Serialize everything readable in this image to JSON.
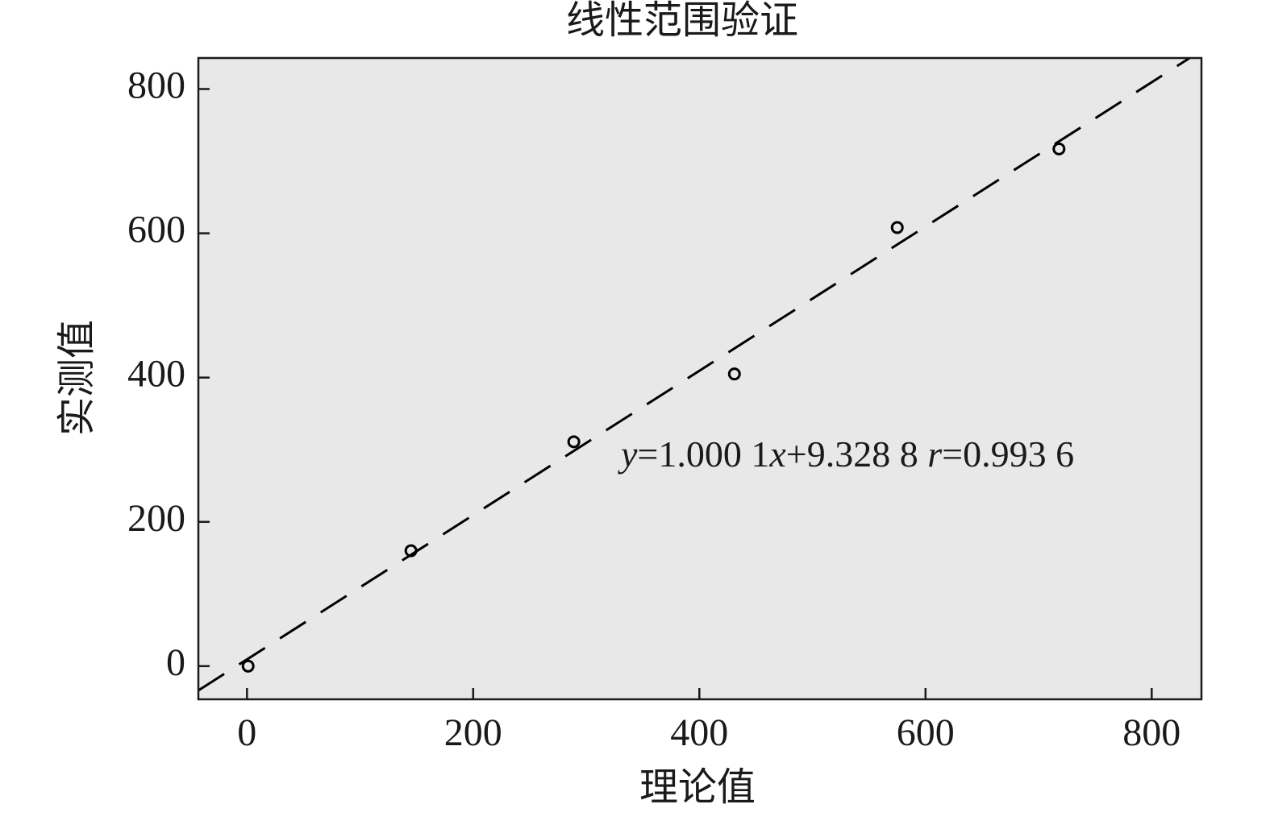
{
  "chart_data": {
    "type": "scatter",
    "title": "线性范围验证",
    "x_label": "理论值",
    "y_label": "实测值",
    "x": [
      1,
      145,
      289,
      431,
      575,
      718
    ],
    "series": [
      {
        "values": [
          0,
          160,
          311,
          405,
          608,
          717
        ],
        "color": "#000000"
      }
    ],
    "fit": {
      "slope": 1.0001,
      "intercept": 9.3288,
      "color": "#000000"
    },
    "annotation": [
      {
        "text": "y",
        "italic": true
      },
      {
        "text": "=1.000 1"
      },
      {
        "text": "x",
        "italic": true
      },
      {
        "text": "+9.328 8 "
      },
      {
        "text": "r",
        "italic": true
      },
      {
        "text": "=0.993 6"
      }
    ],
    "xlim": [
      -43,
      844
    ],
    "ylim": [
      -46,
      843
    ],
    "xticks": [
      0,
      200,
      400,
      600,
      800
    ],
    "yticks": [
      0,
      200,
      400,
      600,
      800
    ],
    "grid": false,
    "background": "#e8e8e8"
  }
}
